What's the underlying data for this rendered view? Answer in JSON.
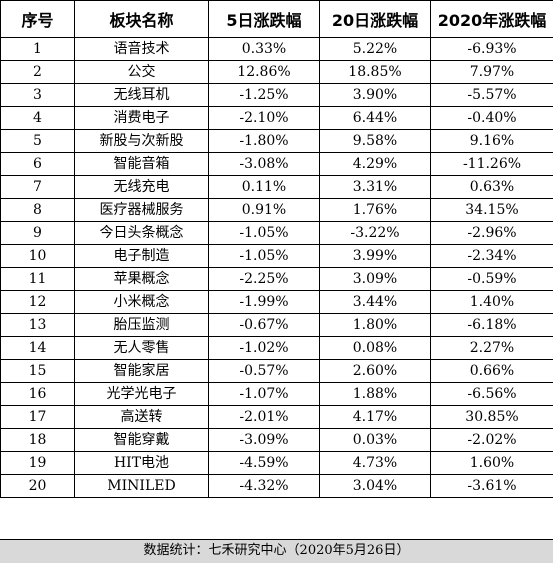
{
  "table": {
    "headers": [
      "序号",
      "板块名称",
      "5日涨跌幅",
      "20日涨跌幅",
      "2020年涨跌幅"
    ],
    "rows": [
      [
        "1",
        "语音技术",
        "0.33%",
        "5.22%",
        "-6.93%"
      ],
      [
        "2",
        "公交",
        "12.86%",
        "18.85%",
        "7.97%"
      ],
      [
        "3",
        "无线耳机",
        "-1.25%",
        "3.90%",
        "-5.57%"
      ],
      [
        "4",
        "消费电子",
        "-2.10%",
        "6.44%",
        "-0.40%"
      ],
      [
        "5",
        "新股与次新股",
        "-1.80%",
        "9.58%",
        "9.16%"
      ],
      [
        "6",
        "智能音箱",
        "-3.08%",
        "4.29%",
        "-11.26%"
      ],
      [
        "7",
        "无线充电",
        "0.11%",
        "3.31%",
        "0.63%"
      ],
      [
        "8",
        "医疗器械服务",
        "0.91%",
        "1.76%",
        "34.15%"
      ],
      [
        "9",
        "今日头条概念",
        "-1.05%",
        "-3.22%",
        "-2.96%"
      ],
      [
        "10",
        "电子制造",
        "-1.05%",
        "3.99%",
        "-2.34%"
      ],
      [
        "11",
        "苹果概念",
        "-2.25%",
        "3.09%",
        "-0.59%"
      ],
      [
        "12",
        "小米概念",
        "-1.99%",
        "3.44%",
        "1.40%"
      ],
      [
        "13",
        "胎压监测",
        "-0.67%",
        "1.80%",
        "-6.18%"
      ],
      [
        "14",
        "无人零售",
        "-1.02%",
        "0.08%",
        "2.27%"
      ],
      [
        "15",
        "智能家居",
        "-0.57%",
        "2.60%",
        "0.66%"
      ],
      [
        "16",
        "光学光电子",
        "-1.07%",
        "1.88%",
        "-6.56%"
      ],
      [
        "17",
        "高送转",
        "-2.01%",
        "4.17%",
        "30.85%"
      ],
      [
        "18",
        "智能穿戴",
        "-3.09%",
        "0.03%",
        "-2.02%"
      ],
      [
        "19",
        "HIT电池",
        "-4.59%",
        "4.73%",
        "1.60%"
      ],
      [
        "20",
        "MINILED",
        "-4.32%",
        "3.04%",
        "-3.61%"
      ]
    ]
  },
  "footer": {
    "text": "数据统计：七禾研究中心（2020年5月26日）",
    "background": "#d9d9d9"
  }
}
